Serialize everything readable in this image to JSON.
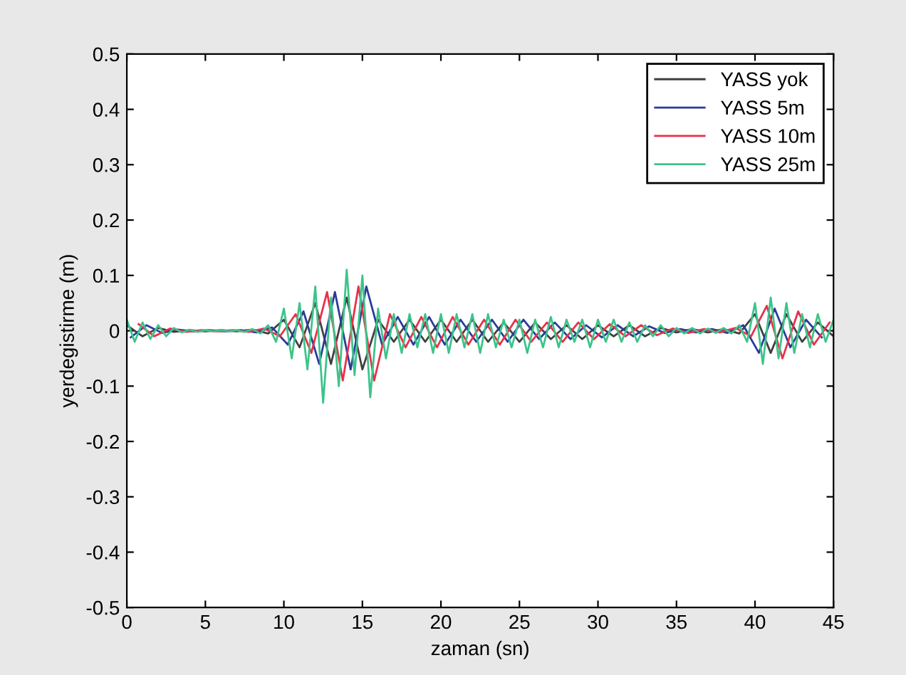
{
  "chart_data": {
    "type": "line",
    "xlabel": "zaman (sn)",
    "ylabel": "yerdegistirme (m)",
    "xlim": [
      0,
      45
    ],
    "xticks": [
      0,
      5,
      10,
      15,
      20,
      25,
      30,
      35,
      40,
      45
    ],
    "ylim": [
      -0.5,
      0.5
    ],
    "yticks": [
      -0.5,
      -0.4,
      -0.3,
      -0.2,
      -0.1,
      0,
      0.1,
      0.2,
      0.3,
      0.4,
      0.5
    ],
    "grid": false,
    "legend": "top right",
    "marker": "none",
    "line_style": "solid",
    "series": [
      {
        "name": "YASS yok",
        "color": "#404040",
        "x": [
          0,
          1,
          2,
          3,
          4,
          5,
          6,
          7,
          8,
          9,
          10,
          11,
          12,
          13,
          14,
          15,
          16,
          17,
          18,
          19,
          20,
          21,
          22,
          23,
          24,
          25,
          26,
          27,
          28,
          29,
          30,
          31,
          32,
          33,
          34,
          35,
          36,
          37,
          38,
          39,
          40,
          41,
          42,
          43,
          44,
          45
        ],
        "values": [
          0.01,
          -0.01,
          0.005,
          -0.002,
          0.001,
          -0.001,
          0.001,
          -0.001,
          0.002,
          -0.005,
          0.02,
          -0.03,
          0.05,
          -0.06,
          0.06,
          -0.07,
          0.02,
          -0.02,
          0.02,
          -0.02,
          0.02,
          -0.02,
          0.02,
          -0.02,
          0.015,
          -0.02,
          0.015,
          -0.015,
          0.01,
          -0.015,
          0.01,
          -0.01,
          0.01,
          -0.01,
          0.005,
          -0.003,
          0.003,
          -0.003,
          0.003,
          -0.005,
          0.03,
          -0.04,
          0.03,
          -0.02,
          0.015,
          -0.01
        ]
      },
      {
        "name": "YASS 5m",
        "color": "#2b3a9a",
        "x": [
          0.25,
          1.25,
          2.25,
          3.25,
          4.25,
          5.25,
          6.25,
          7.25,
          8.25,
          9.25,
          10.25,
          11.25,
          12.25,
          13.25,
          14.25,
          15.25,
          16.25,
          17.25,
          18.25,
          19.25,
          20.25,
          21.25,
          22.25,
          23.25,
          24.25,
          25.25,
          26.25,
          27.25,
          28.25,
          29.25,
          30.25,
          31.25,
          32.25,
          33.25,
          34.25,
          35.25,
          36.25,
          37.25,
          38.25,
          39.25,
          40.25,
          41.25,
          42.25,
          43.25,
          44.25
        ],
        "values": [
          -0.012,
          0.01,
          -0.004,
          0.002,
          -0.001,
          0.001,
          -0.001,
          0.001,
          -0.003,
          0.006,
          -0.025,
          0.035,
          -0.06,
          0.07,
          -0.07,
          0.08,
          -0.025,
          0.025,
          -0.025,
          0.025,
          -0.025,
          0.02,
          -0.02,
          0.02,
          -0.02,
          0.02,
          -0.015,
          0.015,
          -0.015,
          0.01,
          -0.012,
          0.01,
          -0.01,
          0.008,
          -0.004,
          0.003,
          -0.003,
          0.003,
          -0.004,
          0.01,
          -0.04,
          0.04,
          -0.03,
          0.02,
          -0.012
        ]
      },
      {
        "name": "YASS 10m",
        "color": "#e8304a",
        "x": [
          0.75,
          1.75,
          2.75,
          3.75,
          4.75,
          5.75,
          6.75,
          7.75,
          8.75,
          9.75,
          10.75,
          11.75,
          12.75,
          13.75,
          14.75,
          15.75,
          16.75,
          17.75,
          18.75,
          19.75,
          20.75,
          21.75,
          22.75,
          23.75,
          24.75,
          25.75,
          26.75,
          27.75,
          28.75,
          29.75,
          30.75,
          31.75,
          32.75,
          33.75,
          34.75,
          35.75,
          36.75,
          37.75,
          38.75,
          39.75,
          40.75,
          41.75,
          42.75,
          43.75,
          44.75
        ],
        "values": [
          0.012,
          -0.01,
          0.004,
          -0.002,
          0.001,
          -0.001,
          0.001,
          -0.002,
          0.004,
          -0.01,
          0.03,
          -0.04,
          0.07,
          -0.09,
          0.08,
          -0.09,
          0.03,
          -0.03,
          0.025,
          -0.03,
          0.025,
          -0.025,
          0.02,
          -0.025,
          0.02,
          -0.02,
          0.015,
          -0.02,
          0.015,
          -0.015,
          0.012,
          -0.01,
          0.01,
          -0.008,
          0.004,
          -0.004,
          0.003,
          -0.003,
          0.005,
          -0.01,
          0.045,
          -0.05,
          0.035,
          -0.025,
          0.015
        ]
      },
      {
        "name": "YASS 25m",
        "color": "#3cc48a",
        "x": [
          0,
          0.5,
          1,
          1.5,
          2,
          2.5,
          3,
          3.5,
          4,
          4.5,
          5,
          5.5,
          6,
          6.5,
          7,
          7.5,
          8,
          8.5,
          9,
          9.5,
          10,
          10.5,
          11,
          11.5,
          12,
          12.5,
          13,
          13.5,
          14,
          14.5,
          15,
          15.5,
          16,
          16.5,
          17,
          17.5,
          18,
          18.5,
          19,
          19.5,
          20,
          20.5,
          21,
          21.5,
          22,
          22.5,
          23,
          23.5,
          24,
          24.5,
          25,
          25.5,
          26,
          26.5,
          27,
          27.5,
          28,
          28.5,
          29,
          29.5,
          30,
          30.5,
          31,
          31.5,
          32,
          32.5,
          33,
          33.5,
          34,
          34.5,
          35,
          35.5,
          36,
          36.5,
          37,
          37.5,
          38,
          38.5,
          39,
          39.5,
          40,
          40.5,
          41,
          41.5,
          42,
          42.5,
          43,
          43.5,
          44,
          44.5,
          45
        ],
        "values": [
          0.02,
          -0.02,
          0.015,
          -0.015,
          0.01,
          -0.01,
          0.005,
          -0.003,
          0.002,
          -0.002,
          0.001,
          -0.001,
          0.001,
          -0.001,
          0.001,
          -0.002,
          0.003,
          -0.005,
          0.01,
          -0.02,
          0.04,
          -0.05,
          0.05,
          -0.07,
          0.08,
          -0.13,
          0.06,
          -0.1,
          0.11,
          -0.08,
          0.1,
          -0.12,
          0.04,
          -0.05,
          0.03,
          -0.04,
          0.03,
          -0.03,
          0.03,
          -0.04,
          0.03,
          -0.04,
          0.03,
          -0.03,
          0.03,
          -0.04,
          0.03,
          -0.03,
          0.02,
          -0.03,
          0.02,
          -0.04,
          0.02,
          -0.03,
          0.025,
          -0.03,
          0.02,
          -0.02,
          0.02,
          -0.03,
          0.02,
          -0.02,
          0.02,
          -0.02,
          0.015,
          -0.02,
          0.01,
          -0.01,
          0.01,
          -0.01,
          0.005,
          -0.005,
          0.005,
          -0.005,
          0.004,
          -0.004,
          0.005,
          -0.005,
          0.01,
          -0.02,
          0.05,
          -0.06,
          0.06,
          -0.05,
          0.05,
          -0.04,
          0.03,
          -0.03,
          0.03,
          -0.02,
          0.02
        ]
      }
    ]
  }
}
